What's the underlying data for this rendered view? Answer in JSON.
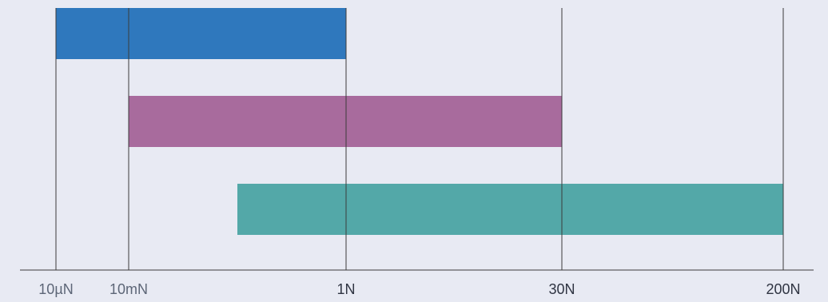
{
  "chart_data": {
    "type": "bar",
    "orientation": "horizontal-range",
    "x_axis": {
      "ticks": [
        "10µN",
        "10mN",
        "1N",
        "30N",
        "200N"
      ]
    },
    "bars": [
      {
        "start": "10µN",
        "end": "1N",
        "color": "#2f78bd"
      },
      {
        "start": "10mN",
        "end": "30N",
        "color": "#a86b9d"
      },
      {
        "start": "0.1N",
        "end": "200N",
        "color": "#53a8a8"
      }
    ],
    "colors": {
      "background": "#e8eaf3",
      "grid": "#3b3b3b",
      "tick_text": "#5d6677",
      "tick_text_emphasis": "#2f3442"
    },
    "grid": true
  }
}
